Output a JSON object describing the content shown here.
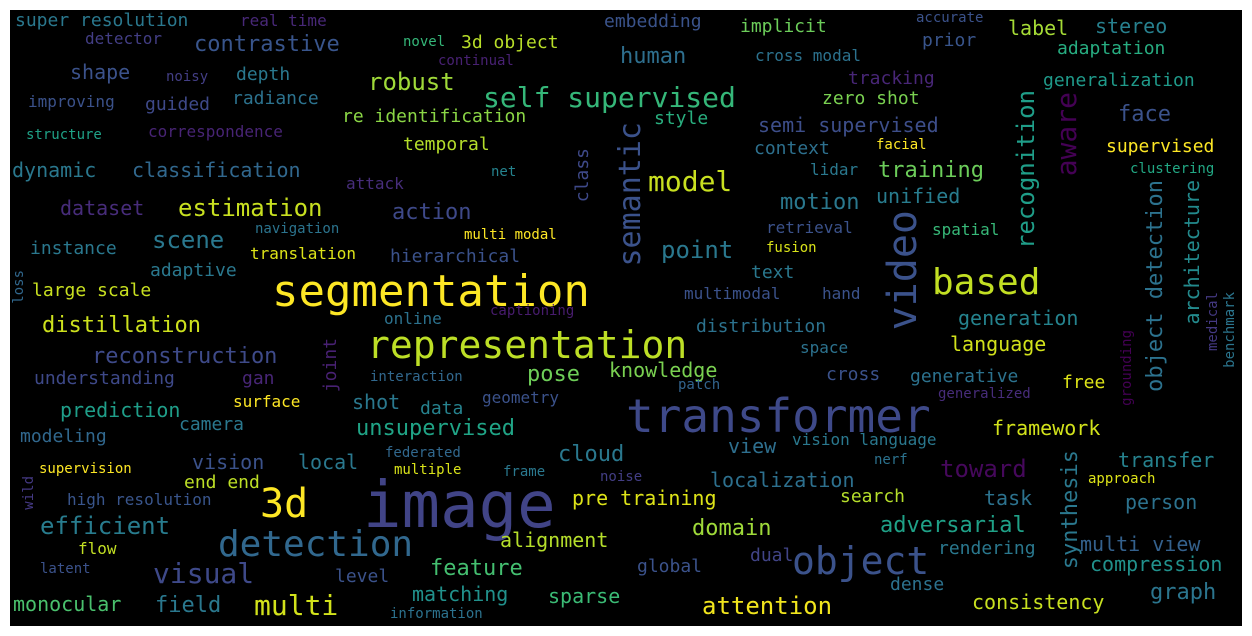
{
  "words": [
    {
      "text": "image",
      "color": "#414487",
      "size": 64
    },
    {
      "text": "transformer",
      "color": "#3e4989",
      "size": 46
    },
    {
      "text": "segmentation",
      "color": "#fde725",
      "size": 44
    },
    {
      "text": "representation",
      "color": "#bddf26",
      "size": 38
    },
    {
      "text": "object",
      "color": "#3b528b",
      "size": 38
    },
    {
      "text": "detection",
      "color": "#31688e",
      "size": 36
    },
    {
      "text": "3d",
      "color": "#fde725",
      "size": 40
    },
    {
      "text": "video",
      "color": "#3b528b",
      "size": 40
    },
    {
      "text": "based",
      "color": "#c2df23",
      "size": 36
    },
    {
      "text": "semantic",
      "color": "#3b528b",
      "size": 30
    },
    {
      "text": "multi",
      "color": "#d2e21b",
      "size": 28
    },
    {
      "text": "visual",
      "color": "#3e4989",
      "size": 28
    },
    {
      "text": "model",
      "color": "#c8e020",
      "size": 28
    },
    {
      "text": "self supervised",
      "color": "#35b779",
      "size": 28
    },
    {
      "text": "aware",
      "color": "#440154",
      "size": 28
    },
    {
      "text": "toward",
      "color": "#46085c",
      "size": 24
    },
    {
      "text": "point",
      "color": "#2a788e",
      "size": 24
    },
    {
      "text": "recognition",
      "color": "#1f9e89",
      "size": 24
    },
    {
      "text": "object detection",
      "color": "#2c728e",
      "size": 22
    },
    {
      "text": "efficient",
      "color": "#287c8e",
      "size": 24
    },
    {
      "text": "attention",
      "color": "#f1e51d",
      "size": 24
    },
    {
      "text": "domain",
      "color": "#9fda3a",
      "size": 22
    },
    {
      "text": "adversarial",
      "color": "#1fa187",
      "size": 22
    },
    {
      "text": "scene",
      "color": "#2a788e",
      "size": 24
    },
    {
      "text": "estimation",
      "color": "#c8e020",
      "size": 24
    },
    {
      "text": "robust",
      "color": "#a0da39",
      "size": 24
    },
    {
      "text": "contrastive",
      "color": "#39558c",
      "size": 22
    },
    {
      "text": "reconstruction",
      "color": "#3e4a89",
      "size": 22
    },
    {
      "text": "distillation",
      "color": "#cde11d",
      "size": 22
    },
    {
      "text": "pose",
      "color": "#6ece58",
      "size": 22
    },
    {
      "text": "knowledge",
      "color": "#7ad151",
      "size": 20
    },
    {
      "text": "unsupervised",
      "color": "#20a486",
      "size": 22
    },
    {
      "text": "field",
      "color": "#2a788e",
      "size": 22
    },
    {
      "text": "monocular",
      "color": "#4ac16d",
      "size": 20
    },
    {
      "text": "feature",
      "color": "#44bf70",
      "size": 22
    },
    {
      "text": "synthesis",
      "color": "#2a788e",
      "size": 22
    },
    {
      "text": "human",
      "color": "#2e6f8e",
      "size": 22
    },
    {
      "text": "motion",
      "color": "#2a788e",
      "size": 22
    },
    {
      "text": "action",
      "color": "#3e4989",
      "size": 22
    },
    {
      "text": "generation",
      "color": "#25838e",
      "size": 20
    },
    {
      "text": "language",
      "color": "#d2e21b",
      "size": 20
    },
    {
      "text": "face",
      "color": "#3b528b",
      "size": 22
    },
    {
      "text": "training",
      "color": "#6ccd5a",
      "size": 22
    },
    {
      "text": "unified",
      "color": "#287c8e",
      "size": 20
    },
    {
      "text": "architecture",
      "color": "#238a8d",
      "size": 20
    },
    {
      "text": "multi view",
      "color": "#34618d",
      "size": 20
    },
    {
      "text": "compression",
      "color": "#21918c",
      "size": 20
    },
    {
      "text": "graph",
      "color": "#2b758e",
      "size": 22
    },
    {
      "text": "consistency",
      "color": "#c8e020",
      "size": 20
    },
    {
      "text": "matching",
      "color": "#21918c",
      "size": 20
    },
    {
      "text": "sparse",
      "color": "#3bbb75",
      "size": 20
    },
    {
      "text": "alignment",
      "color": "#b5de2b",
      "size": 20
    },
    {
      "text": "pre training",
      "color": "#dde318",
      "size": 20
    },
    {
      "text": "localization",
      "color": "#2d708e",
      "size": 20
    },
    {
      "text": "view",
      "color": "#2e6f8e",
      "size": 20
    },
    {
      "text": "cloud",
      "color": "#2a788e",
      "size": 22
    },
    {
      "text": "framework",
      "color": "#d2e21b",
      "size": 20
    },
    {
      "text": "transfer",
      "color": "#26828e",
      "size": 20
    },
    {
      "text": "person",
      "color": "#2c728e",
      "size": 20
    },
    {
      "text": "task",
      "color": "#2c728e",
      "size": 20
    },
    {
      "text": "search",
      "color": "#b5de2b",
      "size": 18
    },
    {
      "text": "rendering",
      "color": "#2a788e",
      "size": 18
    },
    {
      "text": "global",
      "color": "#3b528b",
      "size": 18
    },
    {
      "text": "dense",
      "color": "#2c728e",
      "size": 18
    },
    {
      "text": "dual",
      "color": "#414487",
      "size": 18
    },
    {
      "text": "super resolution",
      "color": "#2a788e",
      "size": 18
    },
    {
      "text": "real time",
      "color": "#482878",
      "size": 16
    },
    {
      "text": "detector",
      "color": "#433e85",
      "size": 16
    },
    {
      "text": "embedding",
      "color": "#3a538b",
      "size": 18
    },
    {
      "text": "implicit",
      "color": "#6ccd5a",
      "size": 18
    },
    {
      "text": "accurate",
      "color": "#3b528b",
      "size": 14
    },
    {
      "text": "label",
      "color": "#a5db36",
      "size": 20
    },
    {
      "text": "stereo",
      "color": "#27808e",
      "size": 20
    },
    {
      "text": "novel",
      "color": "#35b779",
      "size": 14
    },
    {
      "text": "3d object",
      "color": "#b8de29",
      "size": 18
    },
    {
      "text": "prior",
      "color": "#39558c",
      "size": 18
    },
    {
      "text": "adaptation",
      "color": "#27ad81",
      "size": 18
    },
    {
      "text": "shape",
      "color": "#3b528b",
      "size": 20
    },
    {
      "text": "noisy",
      "color": "#433e85",
      "size": 14
    },
    {
      "text": "depth",
      "color": "#2a788e",
      "size": 18
    },
    {
      "text": "continual",
      "color": "#482173",
      "size": 14
    },
    {
      "text": "cross modal",
      "color": "#2c728e",
      "size": 16
    },
    {
      "text": "tracking",
      "color": "#482677",
      "size": 18
    },
    {
      "text": "generalization",
      "color": "#1f9a8a",
      "size": 18
    },
    {
      "text": "improving",
      "color": "#3b528b",
      "size": 16
    },
    {
      "text": "guided",
      "color": "#3e4989",
      "size": 18
    },
    {
      "text": "radiance",
      "color": "#2c728e",
      "size": 18
    },
    {
      "text": "zero shot",
      "color": "#7ad151",
      "size": 18
    },
    {
      "text": "structure",
      "color": "#1fa287",
      "size": 14
    },
    {
      "text": "correspondence",
      "color": "#482475",
      "size": 16
    },
    {
      "text": "re identification",
      "color": "#8bd646",
      "size": 18
    },
    {
      "text": "style",
      "color": "#29af7f",
      "size": 18
    },
    {
      "text": "semi supervised",
      "color": "#3d4e8a",
      "size": 20
    },
    {
      "text": "context",
      "color": "#2d708e",
      "size": 18
    },
    {
      "text": "facial",
      "color": "#fde725",
      "size": 14
    },
    {
      "text": "supervised",
      "color": "#fde725",
      "size": 18
    },
    {
      "text": "clustering",
      "color": "#22a884",
      "size": 14
    },
    {
      "text": "dynamic",
      "color": "#2a788e",
      "size": 20
    },
    {
      "text": "classification",
      "color": "#31688e",
      "size": 20
    },
    {
      "text": "temporal",
      "color": "#b5de2b",
      "size": 18
    },
    {
      "text": "class",
      "color": "#3e4989",
      "size": 18
    },
    {
      "text": "lidar",
      "color": "#2a788e",
      "size": 16
    },
    {
      "text": "attack",
      "color": "#472d7b",
      "size": 16
    },
    {
      "text": "net",
      "color": "#25838e",
      "size": 14
    },
    {
      "text": "dataset",
      "color": "#472c7a",
      "size": 20
    },
    {
      "text": "navigation",
      "color": "#2b748e",
      "size": 14
    },
    {
      "text": "retrieval",
      "color": "#3b528b",
      "size": 16
    },
    {
      "text": "spatial",
      "color": "#37b878",
      "size": 16
    },
    {
      "text": "instance",
      "color": "#2a788e",
      "size": 18
    },
    {
      "text": "translation",
      "color": "#dde318",
      "size": 16
    },
    {
      "text": "multi modal",
      "color": "#fde725",
      "size": 14
    },
    {
      "text": "fusion",
      "color": "#d8e219",
      "size": 14
    },
    {
      "text": "hierarchical",
      "color": "#3b528b",
      "size": 18
    },
    {
      "text": "adaptive",
      "color": "#2a788e",
      "size": 18
    },
    {
      "text": "text",
      "color": "#2a788e",
      "size": 18
    },
    {
      "text": "loss",
      "color": "#31688e",
      "size": 14
    },
    {
      "text": "large scale",
      "color": "#c8e020",
      "size": 18
    },
    {
      "text": "multimodal",
      "color": "#3b528b",
      "size": 16
    },
    {
      "text": "hand",
      "color": "#3b528b",
      "size": 16
    },
    {
      "text": "captioning",
      "color": "#481c6e",
      "size": 14
    },
    {
      "text": "online",
      "color": "#2c728e",
      "size": 16
    },
    {
      "text": "distribution",
      "color": "#2c728e",
      "size": 18
    },
    {
      "text": "medical",
      "color": "#443983",
      "size": 14
    },
    {
      "text": "benchmark",
      "color": "#2b758e",
      "size": 14
    },
    {
      "text": "joint",
      "color": "#482173",
      "size": 18
    },
    {
      "text": "space",
      "color": "#2c728e",
      "size": 16
    },
    {
      "text": "understanding",
      "color": "#3e4989",
      "size": 18
    },
    {
      "text": "gan",
      "color": "#482677",
      "size": 18
    },
    {
      "text": "interaction",
      "color": "#31688e",
      "size": 14
    },
    {
      "text": "cross",
      "color": "#3b528b",
      "size": 18
    },
    {
      "text": "generative",
      "color": "#2c728e",
      "size": 18
    },
    {
      "text": "free",
      "color": "#dde318",
      "size": 18
    },
    {
      "text": "grounding",
      "color": "#440154",
      "size": 14
    },
    {
      "text": "prediction",
      "color": "#1f9e89",
      "size": 20
    },
    {
      "text": "patch",
      "color": "#32648e",
      "size": 14
    },
    {
      "text": "shot",
      "color": "#2a788e",
      "size": 20
    },
    {
      "text": "data",
      "color": "#26828e",
      "size": 18
    },
    {
      "text": "geometry",
      "color": "#3b528b",
      "size": 16
    },
    {
      "text": "surface",
      "color": "#fde725",
      "size": 16
    },
    {
      "text": "generalized",
      "color": "#472c7a",
      "size": 14
    },
    {
      "text": "camera",
      "color": "#2a788e",
      "size": 18
    },
    {
      "text": "modeling",
      "color": "#31688e",
      "size": 18
    },
    {
      "text": "vision language",
      "color": "#2a788e",
      "size": 16
    },
    {
      "text": "vision",
      "color": "#3b528b",
      "size": 20
    },
    {
      "text": "local",
      "color": "#2a788e",
      "size": 20
    },
    {
      "text": "federated",
      "color": "#31688e",
      "size": 14
    },
    {
      "text": "nerf",
      "color": "#2c728e",
      "size": 14
    },
    {
      "text": "wild",
      "color": "#443983",
      "size": 14
    },
    {
      "text": "supervision",
      "color": "#fde725",
      "size": 14
    },
    {
      "text": "multiple",
      "color": "#d8e219",
      "size": 14
    },
    {
      "text": "frame",
      "color": "#2a788e",
      "size": 14
    },
    {
      "text": "noise",
      "color": "#433e85",
      "size": 14
    },
    {
      "text": "approach",
      "color": "#dde318",
      "size": 14
    },
    {
      "text": "end end",
      "color": "#bddf26",
      "size": 18
    },
    {
      "text": "high resolution",
      "color": "#39558c",
      "size": 16
    },
    {
      "text": "flow",
      "color": "#c2df23",
      "size": 16
    },
    {
      "text": "latent",
      "color": "#3b528b",
      "size": 14
    },
    {
      "text": "level",
      "color": "#3b528b",
      "size": 18
    },
    {
      "text": "information",
      "color": "#2c728e",
      "size": 14
    }
  ]
}
